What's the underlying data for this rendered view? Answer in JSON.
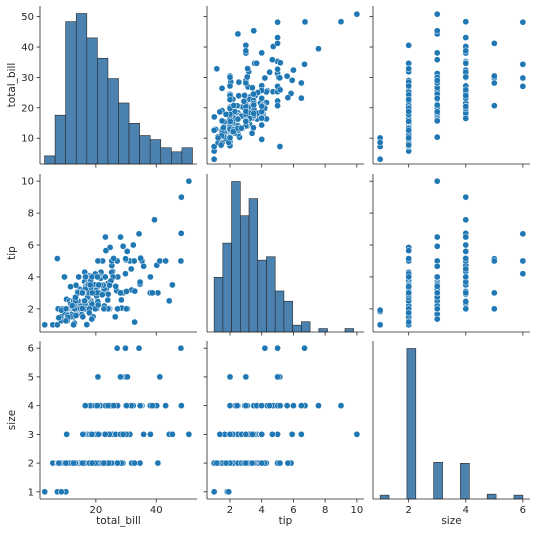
{
  "chart_data": {
    "type": "pairplot",
    "variables": [
      "total_bill",
      "tip",
      "size"
    ],
    "colors": {
      "point": "#1f77b4",
      "bar": "#4c82b0",
      "bar_stroke": "#262626",
      "axis": "#262626"
    },
    "axes": {
      "total_bill": {
        "label": "total_bill",
        "range": [
          1.5,
          53.5
        ],
        "ticks": [
          20,
          40
        ],
        "ticks_y": [
          10,
          20,
          30,
          40,
          50
        ]
      },
      "tip": {
        "label": "tip",
        "range": [
          0.55,
          10.45
        ],
        "ticks": [
          2,
          4,
          6,
          8,
          10
        ],
        "ticks_y": [
          2,
          4,
          6,
          8,
          10
        ]
      },
      "size": {
        "label": "size",
        "range": [
          0.75,
          6.25
        ],
        "ticks": [
          2,
          4,
          6
        ],
        "ticks_y": [
          1,
          2,
          3,
          4,
          5,
          6
        ]
      }
    },
    "histograms": {
      "total_bill": {
        "edges": [
          3,
          6.5,
          10,
          13.5,
          17,
          20.5,
          24,
          27.5,
          31,
          34.5,
          38,
          41.5,
          45,
          48.5,
          52
        ],
        "counts": [
          2,
          12,
          35,
          37,
          31,
          26,
          21,
          15,
          10,
          7,
          6,
          4,
          3,
          4
        ]
      },
      "tip": {
        "edges": [
          1,
          1.55,
          2.1,
          2.65,
          3.2,
          3.75,
          4.3,
          4.85,
          5.4,
          5.95,
          6.5,
          7.05,
          7.6,
          8.15,
          8.7,
          9.25,
          9.8,
          10.35
        ],
        "counts": [
          16,
          26,
          44,
          34,
          39,
          21,
          22,
          12,
          9,
          2,
          3,
          0,
          1,
          0,
          0,
          1,
          0
        ]
      },
      "size": {
        "edges": [
          1,
          1.3125,
          1.625,
          1.9375,
          2.25,
          2.5625,
          2.875,
          3.1875,
          3.5,
          3.8125,
          4.125,
          4.4375,
          4.75,
          5.0625,
          5.375,
          5.6875,
          6
        ],
        "counts": [
          4,
          0,
          0,
          156,
          0,
          0,
          38,
          0,
          0,
          37,
          0,
          0,
          5,
          0,
          0,
          4
        ]
      }
    },
    "points": [
      [
        16.99,
        1.01,
        2
      ],
      [
        10.34,
        1.66,
        3
      ],
      [
        21.01,
        3.5,
        3
      ],
      [
        23.68,
        3.31,
        2
      ],
      [
        24.59,
        3.61,
        4
      ],
      [
        25.29,
        4.71,
        4
      ],
      [
        8.77,
        2.0,
        2
      ],
      [
        26.88,
        3.12,
        4
      ],
      [
        15.04,
        1.96,
        2
      ],
      [
        14.78,
        3.23,
        2
      ],
      [
        10.27,
        1.71,
        2
      ],
      [
        35.26,
        5.0,
        4
      ],
      [
        15.42,
        1.57,
        2
      ],
      [
        18.43,
        3.0,
        4
      ],
      [
        14.83,
        3.02,
        2
      ],
      [
        21.58,
        3.92,
        2
      ],
      [
        10.33,
        1.67,
        3
      ],
      [
        16.29,
        3.71,
        3
      ],
      [
        16.97,
        3.5,
        3
      ],
      [
        20.65,
        3.35,
        3
      ],
      [
        17.92,
        4.08,
        2
      ],
      [
        20.29,
        2.75,
        2
      ],
      [
        15.77,
        2.23,
        2
      ],
      [
        39.42,
        7.58,
        4
      ],
      [
        19.82,
        3.18,
        2
      ],
      [
        17.81,
        2.34,
        4
      ],
      [
        13.37,
        2.0,
        2
      ],
      [
        12.69,
        2.0,
        2
      ],
      [
        21.7,
        4.3,
        2
      ],
      [
        19.65,
        3.0,
        2
      ],
      [
        9.55,
        1.45,
        2
      ],
      [
        18.35,
        2.5,
        4
      ],
      [
        15.06,
        3.0,
        2
      ],
      [
        20.69,
        2.45,
        4
      ],
      [
        17.78,
        3.27,
        2
      ],
      [
        24.06,
        3.6,
        3
      ],
      [
        16.31,
        2.0,
        3
      ],
      [
        16.93,
        3.07,
        3
      ],
      [
        18.69,
        2.31,
        3
      ],
      [
        31.27,
        5.0,
        3
      ],
      [
        16.04,
        2.24,
        3
      ],
      [
        17.46,
        2.54,
        2
      ],
      [
        13.94,
        3.06,
        2
      ],
      [
        9.68,
        1.32,
        2
      ],
      [
        30.4,
        5.6,
        4
      ],
      [
        18.29,
        3.0,
        2
      ],
      [
        22.23,
        5.0,
        2
      ],
      [
        32.4,
        6.0,
        4
      ],
      [
        28.55,
        2.05,
        3
      ],
      [
        18.04,
        3.0,
        2
      ],
      [
        12.54,
        2.5,
        2
      ],
      [
        10.29,
        2.6,
        2
      ],
      [
        34.81,
        5.2,
        4
      ],
      [
        9.94,
        1.56,
        2
      ],
      [
        25.56,
        4.34,
        4
      ],
      [
        19.49,
        3.51,
        2
      ],
      [
        38.01,
        3.0,
        4
      ],
      [
        26.41,
        1.5,
        2
      ],
      [
        11.24,
        1.76,
        2
      ],
      [
        48.27,
        6.73,
        4
      ],
      [
        20.29,
        3.21,
        2
      ],
      [
        13.81,
        2.0,
        2
      ],
      [
        11.02,
        1.98,
        2
      ],
      [
        18.29,
        3.76,
        4
      ],
      [
        17.59,
        2.64,
        3
      ],
      [
        20.08,
        3.15,
        3
      ],
      [
        16.45,
        2.47,
        2
      ],
      [
        3.07,
        1.0,
        1
      ],
      [
        20.23,
        2.01,
        2
      ],
      [
        15.01,
        2.09,
        2
      ],
      [
        12.02,
        1.97,
        2
      ],
      [
        17.07,
        3.0,
        3
      ],
      [
        26.86,
        3.14,
        2
      ],
      [
        25.28,
        5.0,
        2
      ],
      [
        14.73,
        2.2,
        2
      ],
      [
        10.51,
        1.25,
        2
      ],
      [
        17.92,
        3.08,
        2
      ],
      [
        27.2,
        4.0,
        4
      ],
      [
        22.76,
        3.0,
        2
      ],
      [
        17.29,
        2.71,
        2
      ],
      [
        19.44,
        3.0,
        2
      ],
      [
        16.66,
        3.4,
        2
      ],
      [
        10.07,
        1.83,
        1
      ],
      [
        32.68,
        5.0,
        2
      ],
      [
        15.98,
        2.03,
        2
      ],
      [
        34.83,
        5.17,
        4
      ],
      [
        13.03,
        2.0,
        2
      ],
      [
        18.28,
        4.0,
        2
      ],
      [
        24.71,
        5.85,
        2
      ],
      [
        21.16,
        3.0,
        2
      ],
      [
        28.97,
        3.0,
        2
      ],
      [
        22.49,
        3.5,
        2
      ],
      [
        5.75,
        1.0,
        2
      ],
      [
        16.32,
        4.3,
        2
      ],
      [
        22.75,
        3.25,
        2
      ],
      [
        40.17,
        4.73,
        4
      ],
      [
        27.28,
        4.0,
        2
      ],
      [
        12.03,
        1.5,
        2
      ],
      [
        21.01,
        3.0,
        2
      ],
      [
        12.46,
        1.5,
        2
      ],
      [
        11.35,
        2.5,
        2
      ],
      [
        15.38,
        3.0,
        2
      ],
      [
        44.3,
        2.5,
        3
      ],
      [
        22.42,
        3.48,
        2
      ],
      [
        20.92,
        4.08,
        2
      ],
      [
        15.36,
        1.64,
        2
      ],
      [
        20.49,
        4.06,
        2
      ],
      [
        25.21,
        4.29,
        2
      ],
      [
        18.24,
        3.76,
        2
      ],
      [
        14.31,
        4.0,
        2
      ],
      [
        14.0,
        3.0,
        2
      ],
      [
        7.25,
        1.0,
        1
      ],
      [
        38.07,
        4.0,
        3
      ],
      [
        23.95,
        2.55,
        2
      ],
      [
        25.71,
        4.0,
        3
      ],
      [
        17.31,
        3.5,
        2
      ],
      [
        29.93,
        5.07,
        4
      ],
      [
        10.65,
        1.5,
        2
      ],
      [
        12.43,
        1.8,
        2
      ],
      [
        24.08,
        2.92,
        4
      ],
      [
        11.69,
        2.31,
        2
      ],
      [
        13.42,
        1.68,
        2
      ],
      [
        14.26,
        2.5,
        2
      ],
      [
        15.95,
        2.0,
        2
      ],
      [
        12.48,
        2.52,
        2
      ],
      [
        29.8,
        4.2,
        6
      ],
      [
        8.52,
        1.48,
        2
      ],
      [
        14.52,
        2.0,
        2
      ],
      [
        11.38,
        2.0,
        2
      ],
      [
        22.82,
        2.18,
        3
      ],
      [
        19.08,
        1.5,
        2
      ],
      [
        20.27,
        2.83,
        2
      ],
      [
        11.17,
        1.5,
        2
      ],
      [
        12.26,
        2.0,
        2
      ],
      [
        18.26,
        3.25,
        2
      ],
      [
        8.51,
        1.25,
        2
      ],
      [
        10.33,
        2.0,
        2
      ],
      [
        14.15,
        2.0,
        2
      ],
      [
        16.0,
        2.0,
        2
      ],
      [
        13.16,
        2.75,
        2
      ],
      [
        17.47,
        3.5,
        2
      ],
      [
        34.3,
        6.7,
        6
      ],
      [
        41.19,
        5.0,
        5
      ],
      [
        27.05,
        5.0,
        6
      ],
      [
        16.43,
        2.3,
        2
      ],
      [
        8.35,
        1.5,
        2
      ],
      [
        18.64,
        1.36,
        3
      ],
      [
        11.87,
        1.63,
        2
      ],
      [
        9.78,
        1.73,
        2
      ],
      [
        7.51,
        2.0,
        2
      ],
      [
        14.07,
        2.5,
        2
      ],
      [
        13.13,
        2.0,
        2
      ],
      [
        17.26,
        2.74,
        3
      ],
      [
        24.55,
        2.0,
        4
      ],
      [
        19.77,
        2.0,
        4
      ],
      [
        29.85,
        5.14,
        5
      ],
      [
        48.17,
        5.0,
        6
      ],
      [
        25.0,
        3.75,
        4
      ],
      [
        13.39,
        2.61,
        2
      ],
      [
        16.49,
        2.0,
        4
      ],
      [
        21.5,
        3.5,
        4
      ],
      [
        12.66,
        2.5,
        2
      ],
      [
        16.21,
        2.0,
        3
      ],
      [
        13.81,
        2.0,
        2
      ],
      [
        17.51,
        3.0,
        2
      ],
      [
        24.52,
        3.48,
        3
      ],
      [
        20.76,
        2.24,
        2
      ],
      [
        31.71,
        4.5,
        4
      ],
      [
        10.59,
        1.61,
        2
      ],
      [
        10.63,
        2.0,
        2
      ],
      [
        50.81,
        10.0,
        3
      ],
      [
        15.81,
        3.16,
        2
      ],
      [
        7.25,
        5.15,
        2
      ],
      [
        31.85,
        3.18,
        2
      ],
      [
        16.82,
        4.0,
        2
      ],
      [
        32.9,
        3.11,
        2
      ],
      [
        17.89,
        2.0,
        2
      ],
      [
        14.48,
        2.0,
        2
      ],
      [
        9.6,
        4.0,
        2
      ],
      [
        34.63,
        3.55,
        2
      ],
      [
        34.65,
        3.68,
        4
      ],
      [
        23.33,
        5.65,
        2
      ],
      [
        45.35,
        3.5,
        3
      ],
      [
        23.17,
        6.5,
        4
      ],
      [
        40.55,
        3.0,
        2
      ],
      [
        20.69,
        5.0,
        5
      ],
      [
        20.9,
        3.5,
        3
      ],
      [
        30.46,
        2.0,
        5
      ],
      [
        18.15,
        3.5,
        3
      ],
      [
        23.1,
        4.0,
        3
      ],
      [
        15.69,
        1.5,
        2
      ],
      [
        19.81,
        4.19,
        2
      ],
      [
        28.44,
        2.56,
        2
      ],
      [
        15.48,
        2.02,
        2
      ],
      [
        16.58,
        4.0,
        2
      ],
      [
        7.56,
        1.44,
        2
      ],
      [
        10.34,
        2.0,
        2
      ],
      [
        43.11,
        5.0,
        4
      ],
      [
        13.0,
        2.0,
        2
      ],
      [
        13.51,
        2.0,
        2
      ],
      [
        18.71,
        4.0,
        3
      ],
      [
        12.74,
        2.01,
        2
      ],
      [
        13.0,
        2.0,
        2
      ],
      [
        16.4,
        2.5,
        2
      ],
      [
        20.53,
        4.0,
        4
      ],
      [
        16.47,
        3.23,
        3
      ],
      [
        26.59,
        3.41,
        3
      ],
      [
        38.73,
        3.0,
        4
      ],
      [
        24.27,
        2.03,
        2
      ],
      [
        12.76,
        2.23,
        2
      ],
      [
        30.06,
        2.0,
        3
      ],
      [
        25.89,
        5.16,
        4
      ],
      [
        48.33,
        9.0,
        4
      ],
      [
        13.27,
        2.5,
        2
      ],
      [
        28.17,
        6.5,
        3
      ],
      [
        12.9,
        1.1,
        2
      ],
      [
        28.15,
        3.0,
        5
      ],
      [
        11.59,
        1.5,
        2
      ],
      [
        7.74,
        1.44,
        2
      ],
      [
        30.14,
        3.09,
        4
      ],
      [
        12.16,
        2.2,
        2
      ],
      [
        13.42,
        3.48,
        2
      ],
      [
        8.58,
        1.92,
        1
      ],
      [
        15.98,
        3.0,
        3
      ],
      [
        13.42,
        1.58,
        2
      ],
      [
        16.27,
        2.5,
        2
      ],
      [
        10.09,
        2.0,
        2
      ],
      [
        20.45,
        3.0,
        4
      ],
      [
        13.28,
        2.72,
        2
      ],
      [
        22.12,
        2.88,
        2
      ],
      [
        24.01,
        2.0,
        4
      ],
      [
        15.69,
        3.0,
        3
      ],
      [
        11.61,
        3.39,
        2
      ],
      [
        10.77,
        1.47,
        2
      ],
      [
        15.53,
        3.0,
        2
      ],
      [
        10.07,
        1.25,
        2
      ],
      [
        12.6,
        1.0,
        2
      ],
      [
        32.83,
        1.17,
        2
      ],
      [
        35.83,
        4.67,
        3
      ],
      [
        29.03,
        5.92,
        3
      ],
      [
        27.18,
        2.0,
        2
      ],
      [
        22.67,
        2.0,
        2
      ],
      [
        17.82,
        1.75,
        2
      ],
      [
        18.78,
        3.0,
        2
      ]
    ]
  }
}
